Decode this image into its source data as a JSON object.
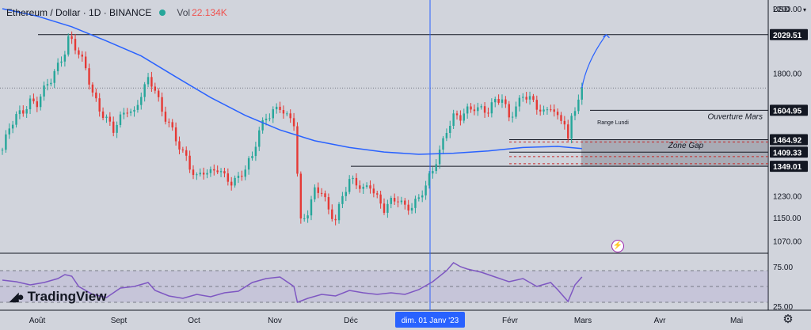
{
  "header": {
    "symbol": "Ethereum / Dollar · 1D · BINANCE",
    "vol_label": "Vol",
    "vol_value": "22.134K"
  },
  "currency": "USD",
  "logo": "TradingView",
  "icons": [
    "tradingview-logo-icon",
    "lightning-alert-icon",
    "settings-gear-icon"
  ],
  "colors": {
    "up": "#26a69a",
    "down": "#e53935",
    "ma": "#2962ff",
    "rsi": "#7e57c2",
    "zone": "#787b86",
    "crosshair": "#2962ff",
    "background": "#d1d4dc"
  },
  "chart_data": [
    {
      "type": "candlestick",
      "pair": "ETH/USD",
      "interval": "1D",
      "exchange": "BINANCE",
      "ylim": [
        1030,
        2260
      ],
      "x_ticks": [
        "Août",
        "Sept",
        "Oct",
        "Nov",
        "Déc",
        "dim. 01 Janv '23",
        "Févr",
        "Mars",
        "Avr",
        "Mai"
      ],
      "y_ticks": [
        2200.0,
        1800.0,
        1230.0,
        1150.0,
        1070.0
      ],
      "price_labels": [
        {
          "value": "2029.51"
        },
        {
          "value": "1604.95"
        },
        {
          "value": "1464.92"
        },
        {
          "value": "1409.33"
        },
        {
          "value": "1349.01"
        }
      ],
      "annotations": [
        {
          "text": "Ouverture Mars",
          "price": 1604.95
        },
        {
          "text": "Zone Gap",
          "price": 1420
        },
        {
          "text": "Range Lundi",
          "price": 1560
        }
      ],
      "closes": [
        [
          0,
          1420
        ],
        [
          2,
          1510
        ],
        [
          4,
          1570
        ],
        [
          6,
          1610
        ],
        [
          8,
          1660
        ],
        [
          10,
          1640
        ],
        [
          12,
          1700
        ],
        [
          14,
          1760
        ],
        [
          16,
          1850
        ],
        [
          18,
          1940
        ],
        [
          19,
          2010
        ],
        [
          20,
          1990
        ],
        [
          22,
          1900
        ],
        [
          24,
          1820
        ],
        [
          26,
          1700
        ],
        [
          28,
          1620
        ],
        [
          30,
          1560
        ],
        [
          32,
          1500
        ],
        [
          34,
          1560
        ],
        [
          36,
          1620
        ],
        [
          38,
          1600
        ],
        [
          40,
          1690
        ],
        [
          42,
          1750
        ],
        [
          44,
          1710
        ],
        [
          46,
          1600
        ],
        [
          48,
          1560
        ],
        [
          49,
          1510
        ],
        [
          50,
          1460
        ],
        [
          52,
          1400
        ],
        [
          54,
          1340
        ],
        [
          56,
          1310
        ],
        [
          58,
          1340
        ],
        [
          60,
          1320
        ],
        [
          62,
          1330
        ],
        [
          64,
          1300
        ],
        [
          66,
          1290
        ],
        [
          68,
          1310
        ],
        [
          70,
          1340
        ],
        [
          72,
          1380
        ],
        [
          74,
          1500
        ],
        [
          76,
          1580
        ],
        [
          78,
          1610
        ],
        [
          80,
          1620
        ],
        [
          82,
          1560
        ],
        [
          84,
          1540
        ],
        [
          85,
          1320
        ],
        [
          86,
          1140
        ],
        [
          88,
          1180
        ],
        [
          90,
          1250
        ],
        [
          92,
          1240
        ],
        [
          94,
          1170
        ],
        [
          96,
          1150
        ],
        [
          98,
          1240
        ],
        [
          100,
          1290
        ],
        [
          102,
          1270
        ],
        [
          104,
          1250
        ],
        [
          106,
          1280
        ],
        [
          108,
          1230
        ],
        [
          110,
          1180
        ],
        [
          112,
          1200
        ],
        [
          114,
          1215
        ],
        [
          116,
          1195
        ],
        [
          118,
          1200
        ],
        [
          120,
          1220
        ],
        [
          122,
          1260
        ],
        [
          124,
          1330
        ],
        [
          126,
          1420
        ],
        [
          128,
          1520
        ],
        [
          130,
          1570
        ],
        [
          132,
          1560
        ],
        [
          134,
          1600
        ],
        [
          136,
          1630
        ],
        [
          138,
          1620
        ],
        [
          140,
          1600
        ],
        [
          142,
          1640
        ],
        [
          144,
          1660
        ],
        [
          146,
          1580
        ],
        [
          148,
          1630
        ],
        [
          150,
          1680
        ],
        [
          152,
          1650
        ],
        [
          154,
          1620
        ],
        [
          156,
          1600
        ],
        [
          158,
          1640
        ],
        [
          160,
          1560
        ],
        [
          162,
          1540
        ],
        [
          163,
          1450
        ],
        [
          164,
          1560
        ],
        [
          165,
          1620
        ],
        [
          166,
          1680
        ],
        [
          167,
          1720
        ]
      ],
      "ma_series": [
        [
          0,
          2200
        ],
        [
          10,
          2150
        ],
        [
          20,
          2080
        ],
        [
          30,
          1990
        ],
        [
          40,
          1900
        ],
        [
          50,
          1780
        ],
        [
          60,
          1670
        ],
        [
          70,
          1580
        ],
        [
          80,
          1510
        ],
        [
          90,
          1460
        ],
        [
          100,
          1430
        ],
        [
          110,
          1410
        ],
        [
          120,
          1400
        ],
        [
          130,
          1405
        ],
        [
          140,
          1415
        ],
        [
          150,
          1430
        ],
        [
          160,
          1435
        ],
        [
          167,
          1425
        ]
      ],
      "projection": {
        "from": [
          167,
          1720
        ],
        "to": [
          174,
          2029.51
        ]
      }
    },
    {
      "type": "line",
      "name": "RSI",
      "ylim": [
        20,
        90
      ],
      "y_ticks": [
        75.0,
        25.0
      ],
      "band": [
        30,
        70
      ],
      "values": [
        [
          0,
          58
        ],
        [
          4,
          56
        ],
        [
          8,
          52
        ],
        [
          12,
          55
        ],
        [
          16,
          60
        ],
        [
          18,
          65
        ],
        [
          20,
          63
        ],
        [
          22,
          50
        ],
        [
          26,
          40
        ],
        [
          30,
          36
        ],
        [
          34,
          48
        ],
        [
          38,
          50
        ],
        [
          42,
          55
        ],
        [
          44,
          45
        ],
        [
          48,
          38
        ],
        [
          52,
          35
        ],
        [
          56,
          40
        ],
        [
          60,
          37
        ],
        [
          64,
          42
        ],
        [
          68,
          44
        ],
        [
          72,
          55
        ],
        [
          76,
          60
        ],
        [
          80,
          62
        ],
        [
          84,
          50
        ],
        [
          85,
          30
        ],
        [
          88,
          35
        ],
        [
          92,
          40
        ],
        [
          96,
          38
        ],
        [
          100,
          45
        ],
        [
          104,
          42
        ],
        [
          108,
          40
        ],
        [
          112,
          42
        ],
        [
          116,
          40
        ],
        [
          120,
          46
        ],
        [
          124,
          56
        ],
        [
          128,
          70
        ],
        [
          130,
          80
        ],
        [
          132,
          75
        ],
        [
          134,
          72
        ],
        [
          138,
          68
        ],
        [
          142,
          62
        ],
        [
          146,
          56
        ],
        [
          150,
          60
        ],
        [
          154,
          50
        ],
        [
          158,
          55
        ],
        [
          160,
          46
        ],
        [
          163,
          31
        ],
        [
          165,
          52
        ],
        [
          167,
          62
        ]
      ]
    }
  ]
}
